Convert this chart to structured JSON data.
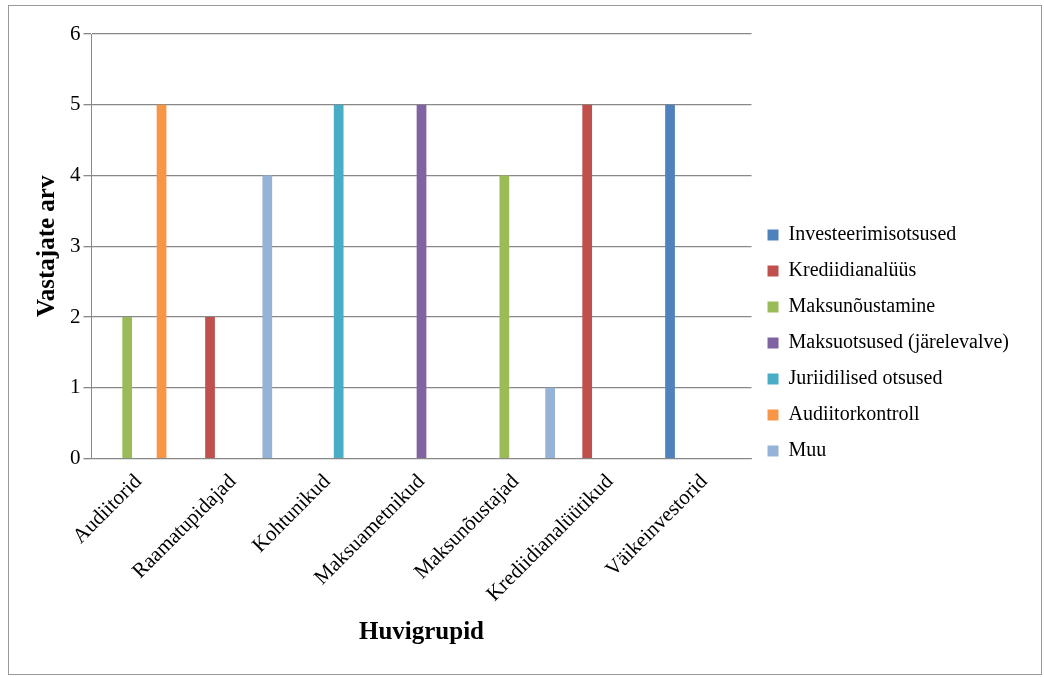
{
  "chart_data": {
    "type": "bar",
    "xlabel": "Huvigrupid",
    "ylabel": "Vastajate arv",
    "categories": [
      "Audiitorid",
      "Raamatupidajad",
      "Kohtunikud",
      "Maksuametnikud",
      "Maksunõustajad",
      "Krediidianalüütikud",
      "Väikeinvestorid"
    ],
    "series": [
      {
        "name": "Investeerimisotsused",
        "color": "#4f81bd",
        "values": [
          null,
          null,
          null,
          null,
          null,
          null,
          5
        ]
      },
      {
        "name": "Krediidianalüüs",
        "color": "#c0504d",
        "values": [
          null,
          2,
          null,
          null,
          null,
          5,
          null
        ]
      },
      {
        "name": "Maksunõustamine",
        "color": "#9bbb59",
        "values": [
          2,
          null,
          null,
          null,
          4,
          null,
          null
        ]
      },
      {
        "name": "Maksuotsused (järelevalve)",
        "color": "#8064a2",
        "values": [
          null,
          null,
          null,
          5,
          null,
          null,
          null
        ]
      },
      {
        "name": "Juriidilised otsused",
        "color": "#4bacc6",
        "values": [
          null,
          null,
          5,
          null,
          null,
          null,
          null
        ]
      },
      {
        "name": "Audiitorkontroll",
        "color": "#f79646",
        "values": [
          5,
          null,
          null,
          null,
          null,
          null,
          null
        ]
      },
      {
        "name": "Muu",
        "color": "#95b3d7",
        "values": [
          null,
          4,
          null,
          null,
          1,
          null,
          null
        ]
      }
    ],
    "ylim": [
      0,
      6
    ],
    "yticks": [
      0,
      1,
      2,
      3,
      4,
      5,
      6
    ],
    "grid": "y",
    "legend": "right"
  }
}
